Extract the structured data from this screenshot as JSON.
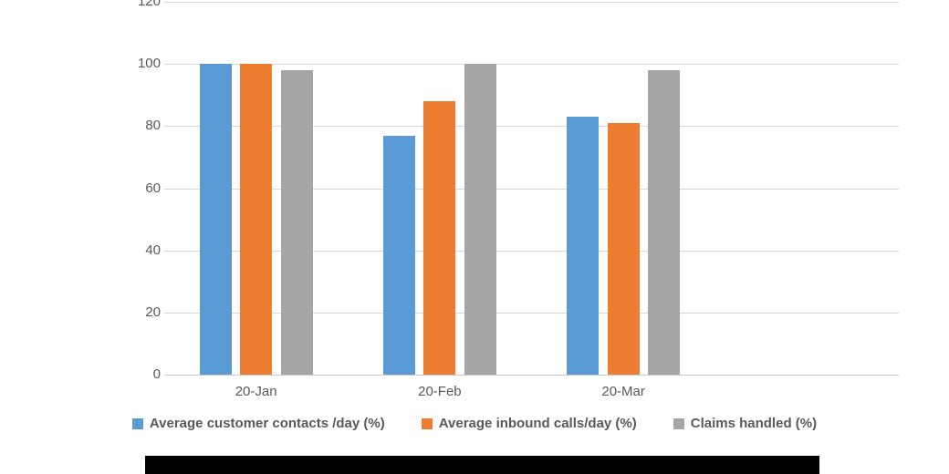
{
  "chart_data": {
    "type": "bar",
    "title": "",
    "xlabel": "",
    "ylabel": "",
    "categories": [
      "20-Jan",
      "20-Feb",
      "20-Mar"
    ],
    "series": [
      {
        "name": "Average customer contacts /day (%)",
        "color": "#5B9BD5",
        "values": [
          100,
          77,
          83
        ]
      },
      {
        "name": "Average inbound calls/day (%)",
        "color": "#ED7D31",
        "values": [
          100,
          88,
          81
        ]
      },
      {
        "name": "Claims handled (%)",
        "color": "#A6A6A6",
        "values": [
          98,
          100,
          98
        ]
      }
    ],
    "ylim": [
      0,
      120
    ],
    "yticks": [
      0,
      20,
      40,
      60,
      80,
      100,
      120
    ],
    "ytick_labels": [
      "0",
      "20",
      "40",
      "60",
      "80",
      "100",
      "120"
    ],
    "grid": true,
    "legend_position": "bottom"
  },
  "colors": {
    "background": "#FFFFFF",
    "gridline": "#D9D9D9",
    "baseline": "#C9C9C9",
    "axis_text": "#595959",
    "legend_text": "#595959",
    "redaction_bar": "#000000"
  }
}
